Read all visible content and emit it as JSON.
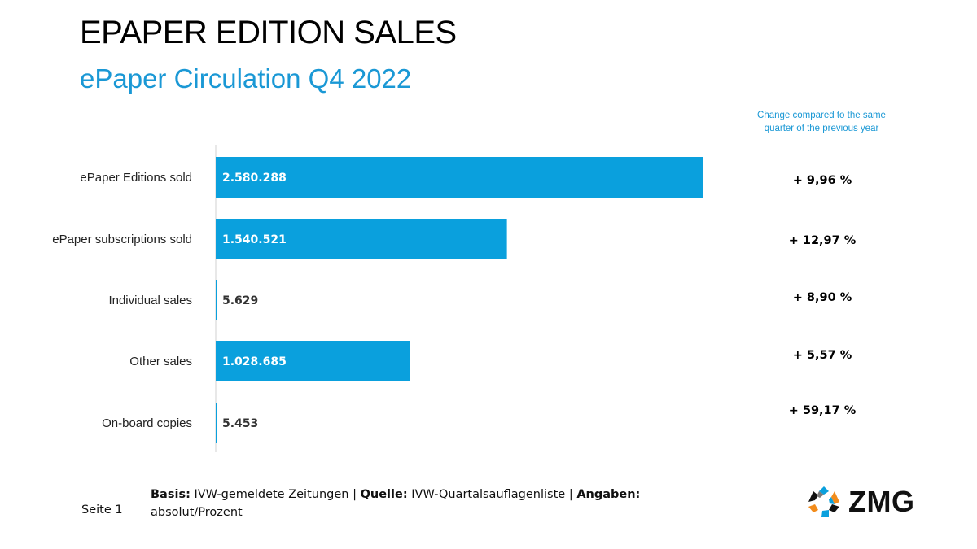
{
  "header": {
    "title": "EPAPER EDITION SALES",
    "subtitle": "ePaper Circulation Q4 2022",
    "change_header": "Change compared to the same quarter of the previous year"
  },
  "chart_data": {
    "type": "bar",
    "orientation": "horizontal",
    "title": "ePaper Circulation Q4 2022",
    "categories": [
      "ePaper Editions sold",
      "ePaper subscriptions sold",
      "Individual sales",
      "Other sales",
      "On-board copies"
    ],
    "values": [
      2580288,
      1540521,
      5629,
      1028685,
      5453
    ],
    "value_labels": [
      "2.580.288",
      "1.540.521",
      "5.629",
      "1.028.685",
      "5.453"
    ],
    "change_labels": [
      "+ 9,96 %",
      "+ 12,97 %",
      "+ 8,90 %",
      "+ 5,57 %",
      "+ 59,17 %"
    ],
    "bar_color": "#0aa0dd",
    "xlim": [
      0,
      2800000
    ],
    "grid": false,
    "xlabel": "",
    "ylabel": ""
  },
  "footer": {
    "page": "Seite 1",
    "basis_label": "Basis:",
    "basis_value": "IVW-gemeldete Zeitungen",
    "source_label": "Quelle:",
    "source_value": "IVW-Quartalsauflagenliste",
    "info_label": "Angaben:",
    "info_value": "absolut/Prozent",
    "separator": "|"
  },
  "logo": {
    "text": "ZMG",
    "icon": "zmg-logo-icon"
  }
}
